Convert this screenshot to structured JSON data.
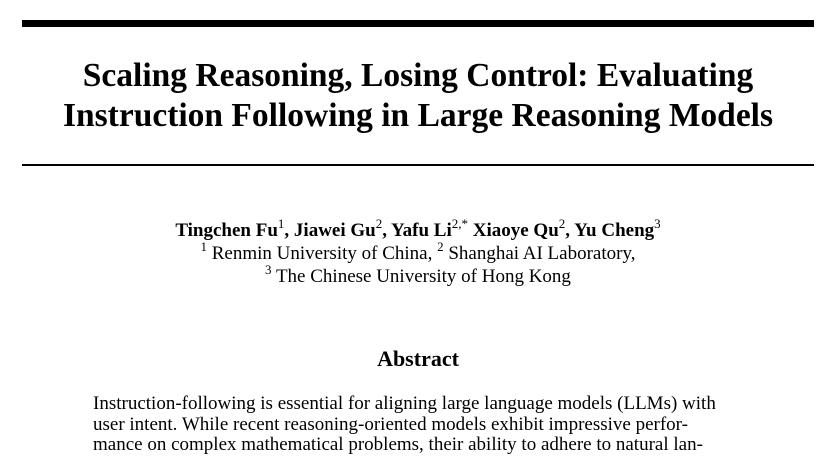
{
  "paper": {
    "title_line1": "Scaling Reasoning, Losing Control: Evaluating",
    "title_line2": "Instruction Following in Large Reasoning Models",
    "authors": [
      {
        "name": "Tingchen Fu",
        "sup": "1",
        "sep": ", "
      },
      {
        "name": "Jiawei Gu",
        "sup": "2",
        "sep": ", "
      },
      {
        "name": "Yafu Li",
        "sup": "2,*",
        "sep": " "
      },
      {
        "name": "Xiaoye Qu",
        "sup": "2",
        "sep": ", "
      },
      {
        "name": "Yu Cheng",
        "sup": "3",
        "sep": ""
      }
    ],
    "affiliations": {
      "aff1_sup": "1",
      "aff1_name": " Renmin University of China, ",
      "aff2_sup": "2",
      "aff2_name": " Shanghai AI Laboratory,",
      "aff3_sup": "3",
      "aff3_name": " The Chinese University of Hong Kong"
    },
    "abstract_heading": "Abstract",
    "abstract_lines": [
      "Instruction-following is essential for aligning large language models (LLMs) with",
      "user intent.  While recent reasoning-oriented models exhibit impressive perfor-",
      "mance on complex mathematical problems, their ability to adhere to natural lan-"
    ]
  }
}
